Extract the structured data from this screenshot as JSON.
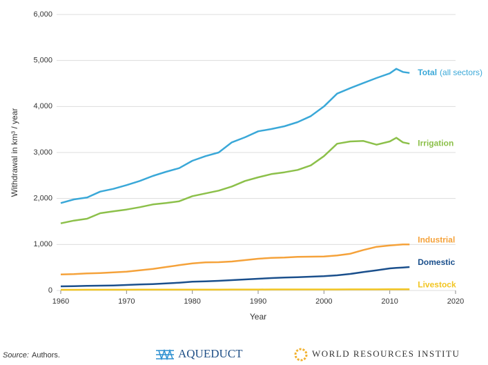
{
  "chart_data": {
    "type": "line",
    "y_label": "Withdrawal in km³ / year",
    "x_label": "Year",
    "x": [
      1960,
      1962,
      1964,
      1966,
      1968,
      1970,
      1972,
      1974,
      1976,
      1978,
      1980,
      1982,
      1984,
      1986,
      1988,
      1990,
      1992,
      1994,
      1996,
      1998,
      2000,
      2002,
      2004,
      2006,
      2008,
      2010,
      2011,
      2012,
      2013
    ],
    "series": [
      {
        "name": "Total",
        "color": "#3aa8d8",
        "values": [
          1900,
          1980,
          2020,
          2150,
          2210,
          2290,
          2380,
          2490,
          2580,
          2660,
          2820,
          2920,
          3000,
          3220,
          3330,
          3460,
          3510,
          3570,
          3660,
          3790,
          4000,
          4280,
          4400,
          4510,
          4620,
          4720,
          4820,
          4750,
          4730
        ]
      },
      {
        "name": "Irrigation",
        "color": "#8cc04a",
        "values": [
          1460,
          1520,
          1560,
          1680,
          1720,
          1760,
          1810,
          1870,
          1900,
          1940,
          2050,
          2110,
          2170,
          2260,
          2380,
          2460,
          2530,
          2570,
          2620,
          2720,
          2920,
          3190,
          3240,
          3250,
          3170,
          3240,
          3320,
          3220,
          3190
        ]
      },
      {
        "name": "Industrial",
        "color": "#f5a23a",
        "values": [
          350,
          355,
          370,
          380,
          395,
          410,
          440,
          470,
          510,
          550,
          590,
          610,
          615,
          630,
          660,
          690,
          710,
          715,
          730,
          735,
          740,
          760,
          800,
          880,
          950,
          980,
          990,
          1000,
          1000
        ]
      },
      {
        "name": "Domestic",
        "color": "#1a4f8c",
        "values": [
          90,
          95,
          100,
          105,
          110,
          120,
          130,
          140,
          155,
          170,
          190,
          200,
          210,
          225,
          240,
          255,
          270,
          280,
          290,
          300,
          310,
          330,
          360,
          400,
          440,
          480,
          490,
          500,
          510
        ]
      },
      {
        "name": "Livestock",
        "color": "#f2c521",
        "values": [
          15,
          15,
          16,
          16,
          17,
          17,
          18,
          18,
          19,
          19,
          20,
          20,
          20,
          21,
          21,
          21,
          22,
          22,
          22,
          23,
          23,
          23,
          24,
          24,
          24,
          25,
          25,
          25,
          25
        ]
      }
    ],
    "annotations": [
      {
        "text": "(all sectors)"
      }
    ],
    "xlim": [
      1960,
      2020
    ],
    "xticks": [
      1960,
      1970,
      1980,
      1990,
      2000,
      2010,
      2020
    ],
    "ylim": [
      0,
      6000
    ],
    "yticks": [
      0,
      {
        "value": 1000,
        "label": "1,000"
      },
      {
        "value": 2000,
        "label": "2,000"
      },
      {
        "value": 3000,
        "label": "3,000"
      },
      {
        "value": 4000,
        "label": "4,000"
      },
      {
        "value": 5000,
        "label": "5,000"
      },
      {
        "value": 6000,
        "label": "6,000"
      }
    ],
    "grid": true,
    "source_label": "Source:",
    "source": "Authors.",
    "logos": [
      "AQUEDUCT",
      "WORLD RESOURCES INSTITU"
    ]
  }
}
